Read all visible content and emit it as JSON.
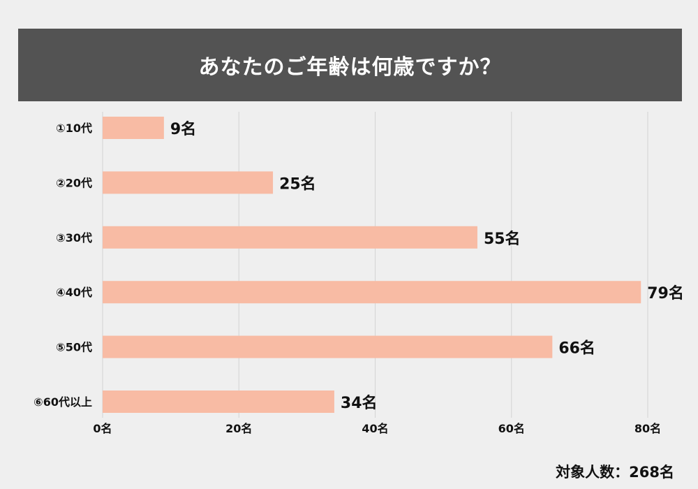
{
  "colors": {
    "background": "#efefef",
    "header": "#535353",
    "bar": "#f8bba4",
    "grid": "#d3d3d3",
    "text": "#111111"
  },
  "chart_data": {
    "type": "bar",
    "orientation": "horizontal",
    "title": "あなたのご年齢は何歳ですか？",
    "categories": [
      "①10代",
      "②20代",
      "③30代",
      "④40代",
      "⑤50代",
      "⑥60代以上"
    ],
    "values": [
      9,
      25,
      55,
      79,
      66,
      34
    ],
    "value_labels": [
      "9名",
      "25名",
      "55名",
      "79名",
      "66名",
      "34名"
    ],
    "x_ticks": [
      0,
      20,
      40,
      60,
      80
    ],
    "x_tick_labels": [
      "0名",
      "20名",
      "40名",
      "60名",
      "80名"
    ],
    "xlim": [
      0,
      80
    ],
    "xlabel": "",
    "ylabel": "",
    "grid": true,
    "legend": false
  },
  "footnote": "対象人数：268名"
}
